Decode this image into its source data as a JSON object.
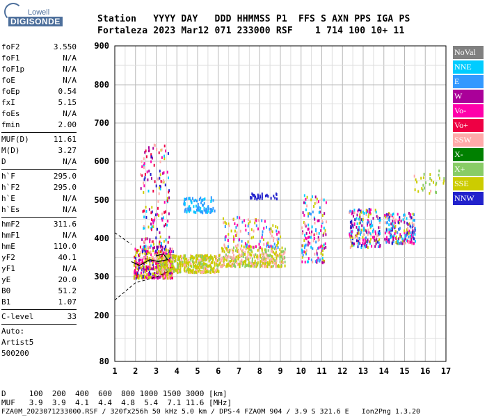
{
  "logo": {
    "brand": "Lowell",
    "product": "DIGISONDE"
  },
  "header": {
    "line1": "Station   YYYY DAY   DDD HHMMSS P1  FFS S AXN PPS IGA PS",
    "line2": "Fortaleza 2023 Mar12 071 233000 RSF    1 714 100 10+ 11"
  },
  "params": {
    "group1": [
      {
        "k": "foF2",
        "v": "3.550"
      },
      {
        "k": "foF1",
        "v": "N/A"
      },
      {
        "k": "foF1p",
        "v": "N/A"
      },
      {
        "k": "foE",
        "v": "N/A"
      },
      {
        "k": "foEp",
        "v": "0.54"
      },
      {
        "k": "fxI",
        "v": "5.15"
      },
      {
        "k": "foEs",
        "v": "N/A"
      },
      {
        "k": "fmin",
        "v": "2.00"
      }
    ],
    "group2": [
      {
        "k": "MUF(D)",
        "v": "11.61"
      },
      {
        "k": "M(D)",
        "v": "3.27"
      },
      {
        "k": "D",
        "v": "N/A"
      }
    ],
    "group3": [
      {
        "k": "h`F",
        "v": "295.0"
      },
      {
        "k": "h`F2",
        "v": "295.0"
      },
      {
        "k": "h`E",
        "v": "N/A"
      },
      {
        "k": "h`Es",
        "v": "N/A"
      }
    ],
    "group4": [
      {
        "k": "hmF2",
        "v": "311.6"
      },
      {
        "k": "hmF1",
        "v": "N/A"
      },
      {
        "k": "hmE",
        "v": "110.0"
      },
      {
        "k": "yF2",
        "v": "40.1"
      },
      {
        "k": "yF1",
        "v": "N/A"
      },
      {
        "k": "yE",
        "v": "20.0"
      },
      {
        "k": "B0",
        "v": "51.2"
      },
      {
        "k": "B1",
        "v": "1.07"
      }
    ],
    "clevel": {
      "k": "C-level",
      "v": "33"
    },
    "auto": [
      "Auto:",
      "Artist5",
      "500200"
    ]
  },
  "axes": {
    "y_ticks": [
      "900",
      "800",
      "700",
      "600",
      "500",
      "400",
      "300",
      "200",
      "80"
    ],
    "x_ticks": [
      "1",
      "2",
      "3",
      "4",
      "5",
      "6",
      "7",
      "8",
      "9",
      "10",
      "11",
      "12",
      "13",
      "14",
      "15",
      "16",
      "17"
    ]
  },
  "legend": [
    {
      "label": "NoVal",
      "color": "#808080"
    },
    {
      "label": "NNE",
      "color": "#00ccff"
    },
    {
      "label": "E",
      "color": "#3399ff"
    },
    {
      "label": "W",
      "color": "#aa0099"
    },
    {
      "label": "Vo-",
      "color": "#ff00aa"
    },
    {
      "label": "Vo+",
      "color": "#ee0044"
    },
    {
      "label": "SSW",
      "color": "#ffaaaa"
    },
    {
      "label": "X-",
      "color": "#008000"
    },
    {
      "label": "X+",
      "color": "#88cc66"
    },
    {
      "label": "SSE",
      "color": "#cccc00"
    },
    {
      "label": "NNW",
      "color": "#2222cc"
    }
  ],
  "footer": {
    "d_row": "D     100  200  400  600  800 1000 1500 3000 [km]",
    "muf_row": "MUF   3.9  3.9  4.1  4.4  4.8  5.4  7.1 11.6 [MHz]",
    "file_row": "FZA0M_2023071233000.RSF / 320fx256h 50 kHz 5.0 km / DPS-4 FZA0M 904 / 3.9 S 321.6 E   Ion2Png 1.3.20"
  }
}
